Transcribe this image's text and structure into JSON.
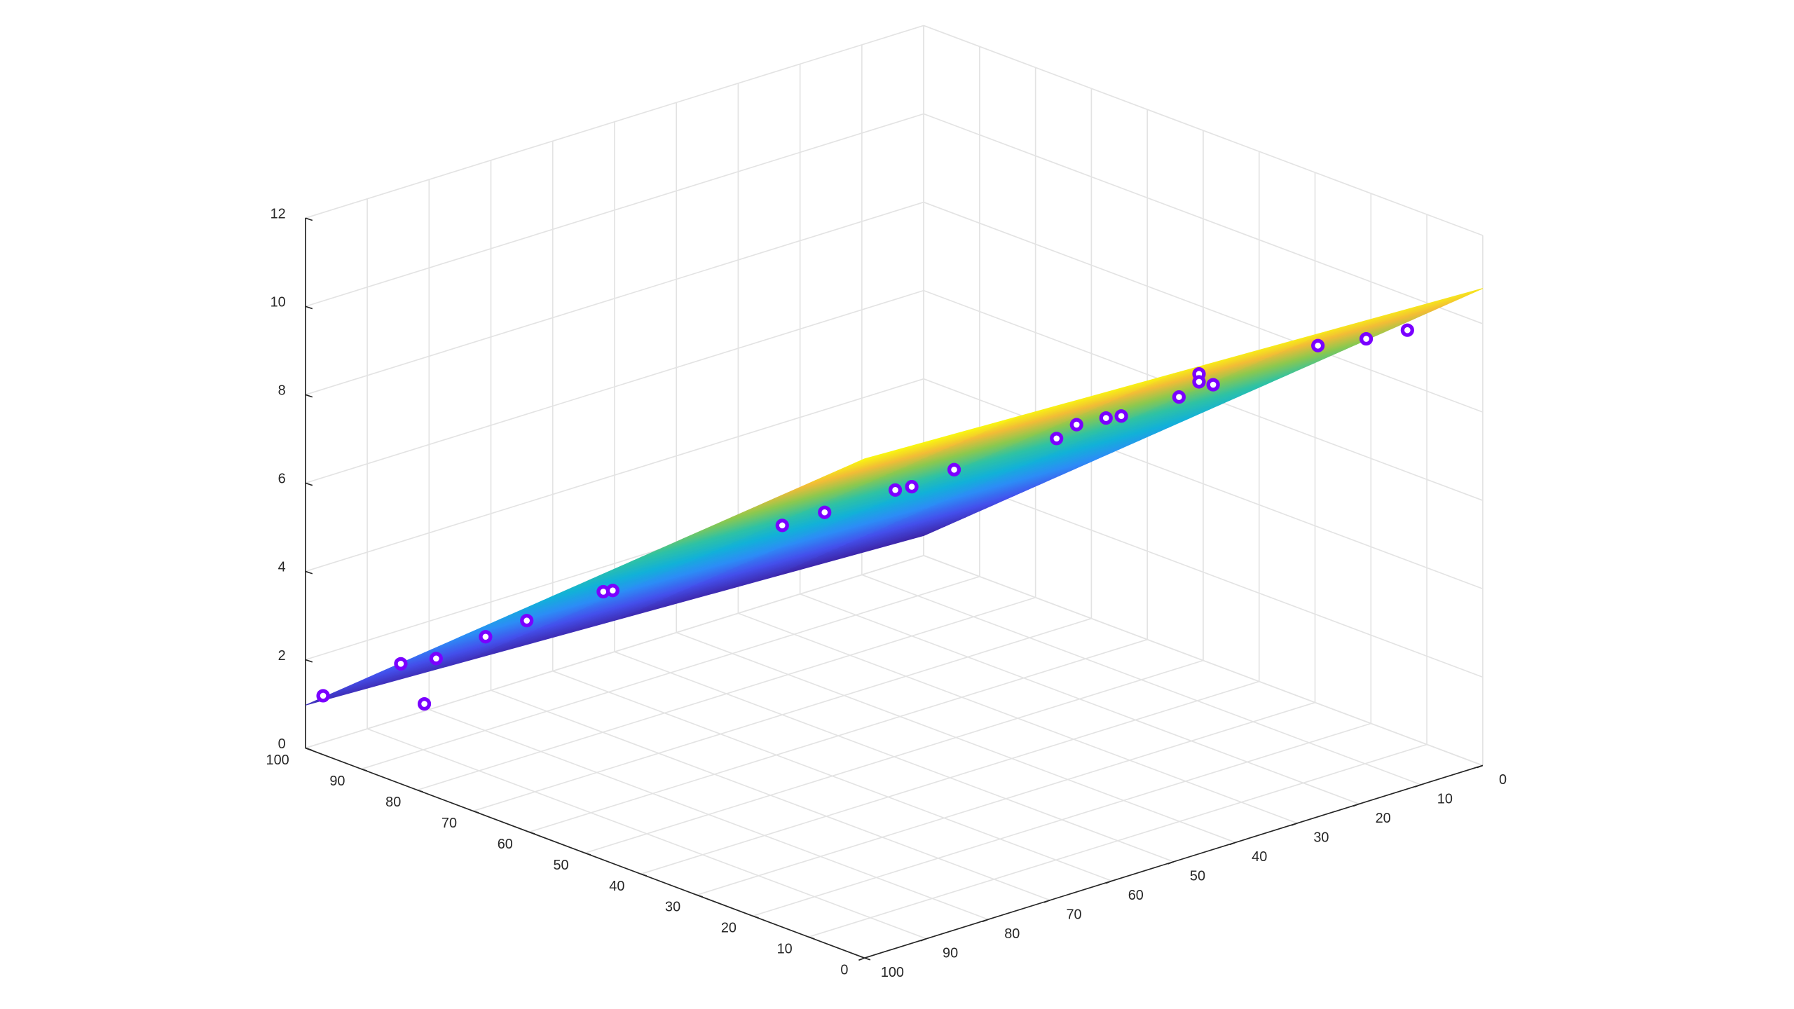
{
  "chart_data": {
    "type": "surface3d",
    "xlim": [
      0,
      100
    ],
    "ylim": [
      0,
      100
    ],
    "zlim": [
      0,
      12
    ],
    "xticks": [
      0,
      10,
      20,
      30,
      40,
      50,
      60,
      70,
      80,
      90,
      100
    ],
    "yticks": [
      0,
      10,
      20,
      30,
      40,
      50,
      60,
      70,
      80,
      90,
      100
    ],
    "zticks": [
      0,
      2,
      4,
      6,
      8,
      10,
      12
    ],
    "grid": true,
    "surface": {
      "x": [
        0,
        100
      ],
      "y": [
        0,
        100
      ],
      "z": [
        [
          10.8,
          0.45
        ],
        [
          11.3,
          0.97
        ]
      ]
    },
    "scatter": {
      "color": "#7a00ff",
      "x": [
        98.5,
        91.9,
        89.9,
        88.9,
        84.7,
        81.2,
        74.7,
        73.9,
        59.5,
        55.9,
        49.9,
        48.5,
        44.9,
        36.2,
        34.5,
        32.0,
        30.7,
        25.8,
        24.1,
        24.1,
        22.9,
        14.0,
        9.9,
        6.4
      ],
      "y": [
        98.5,
        91.9,
        89.9,
        88.9,
        84.7,
        81.2,
        74.7,
        73.9,
        59.5,
        55.9,
        49.9,
        48.5,
        44.9,
        36.2,
        34.5,
        32.0,
        30.7,
        25.8,
        24.1,
        24.1,
        22.9,
        14.0,
        9.9,
        6.4
      ],
      "z": [
        1.19,
        1.94,
        1.04,
        2.07,
        2.58,
        2.96,
        3.64,
        3.67,
        5.2,
        5.51,
        6.04,
        6.12,
        6.52,
        7.26,
        7.58,
        7.74,
        7.79,
        8.24,
        8.77,
        8.59,
        8.53,
        9.45,
        9.62,
        9.83
      ]
    }
  }
}
